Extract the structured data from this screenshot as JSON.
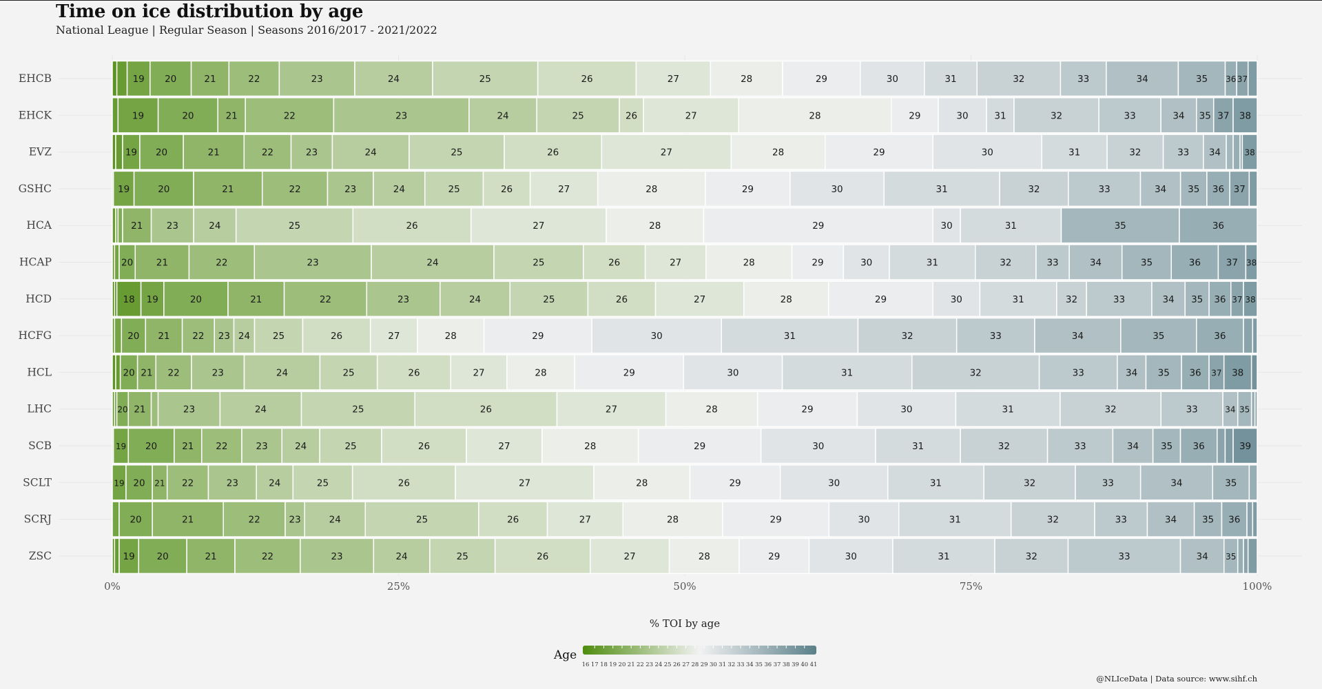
{
  "title": "Time on ice distribution by age",
  "subtitle": "National League | Regular Season | Seasons 2016/2017 - 2021/2022",
  "caption": "@NLIceData | Data source: www.sihf.ch",
  "chart_data": {
    "type": "bar",
    "orientation": "horizontal-stacked-100",
    "title": "Time on ice distribution by age",
    "xlabel": "% TOI by age",
    "xlim": [
      0,
      100
    ],
    "x_ticks": [
      "0%",
      "25%",
      "50%",
      "75%",
      "100%"
    ],
    "legend": {
      "title": "Age",
      "placement": "bottom",
      "min": 16,
      "max": 41,
      "ticks": [
        16,
        17,
        18,
        19,
        20,
        21,
        22,
        23,
        24,
        25,
        26,
        27,
        28,
        29,
        30,
        31,
        32,
        33,
        34,
        35,
        36,
        37,
        38,
        39,
        40,
        41
      ]
    },
    "colors": {
      "low": "#4e8c0e",
      "mid": "#f2f2f2",
      "high": "#5b808a"
    },
    "series": [
      {
        "team": "EHCB",
        "segments": [
          [
            17,
            0.4
          ],
          [
            18,
            0.9
          ],
          [
            19,
            2.0
          ],
          [
            20,
            3.6
          ],
          [
            21,
            3.3
          ],
          [
            22,
            4.4
          ],
          [
            23,
            6.6
          ],
          [
            24,
            6.8
          ],
          [
            25,
            9.2
          ],
          [
            26,
            8.6
          ],
          [
            27,
            6.5
          ],
          [
            28,
            6.3
          ],
          [
            29,
            6.8
          ],
          [
            30,
            5.6
          ],
          [
            31,
            4.6
          ],
          [
            32,
            7.3
          ],
          [
            33,
            4.0
          ],
          [
            34,
            6.3
          ],
          [
            35,
            4.1
          ],
          [
            36,
            1.0
          ],
          [
            37,
            1.0
          ],
          [
            38,
            0.8
          ]
        ]
      },
      {
        "team": "EHCK",
        "segments": [
          [
            18,
            0.5
          ],
          [
            19,
            3.5
          ],
          [
            20,
            5.2
          ],
          [
            21,
            2.4
          ],
          [
            22,
            7.7
          ],
          [
            23,
            11.8
          ],
          [
            24,
            5.9
          ],
          [
            25,
            7.2
          ],
          [
            26,
            2.1
          ],
          [
            27,
            8.3
          ],
          [
            28,
            13.3
          ],
          [
            29,
            4.1
          ],
          [
            30,
            4.2
          ],
          [
            31,
            2.4
          ],
          [
            32,
            7.4
          ],
          [
            33,
            5.4
          ],
          [
            34,
            3.1
          ],
          [
            35,
            1.5
          ],
          [
            37,
            1.7
          ],
          [
            38,
            2.1
          ]
        ]
      },
      {
        "team": "EVZ",
        "segments": [
          [
            17,
            0.3
          ],
          [
            18,
            0.6
          ],
          [
            19,
            1.5
          ],
          [
            20,
            3.8
          ],
          [
            21,
            5.3
          ],
          [
            22,
            4.1
          ],
          [
            23,
            3.6
          ],
          [
            24,
            6.7
          ],
          [
            25,
            8.3
          ],
          [
            26,
            8.5
          ],
          [
            27,
            11.3
          ],
          [
            28,
            8.2
          ],
          [
            29,
            9.4
          ],
          [
            30,
            9.5
          ],
          [
            31,
            5.7
          ],
          [
            32,
            4.9
          ],
          [
            33,
            3.5
          ],
          [
            34,
            2.0
          ],
          [
            35,
            0.6
          ],
          [
            36,
            0.6
          ],
          [
            37,
            0.2
          ],
          [
            38,
            1.3
          ]
        ]
      },
      {
        "team": "GSHC",
        "segments": [
          [
            18,
            0.1
          ],
          [
            19,
            1.8
          ],
          [
            20,
            5.2
          ],
          [
            21,
            6.0
          ],
          [
            22,
            5.7
          ],
          [
            23,
            4.0
          ],
          [
            24,
            4.5
          ],
          [
            25,
            5.1
          ],
          [
            26,
            4.1
          ],
          [
            27,
            5.9
          ],
          [
            28,
            9.4
          ],
          [
            29,
            7.4
          ],
          [
            30,
            8.2
          ],
          [
            31,
            10.1
          ],
          [
            32,
            6.0
          ],
          [
            33,
            6.3
          ],
          [
            34,
            3.5
          ],
          [
            35,
            2.3
          ],
          [
            36,
            2.0
          ],
          [
            37,
            1.7
          ],
          [
            38,
            0.7
          ]
        ]
      },
      {
        "team": "HCA",
        "segments": [
          [
            18,
            0.3
          ],
          [
            19,
            0.2
          ],
          [
            20,
            0.4
          ],
          [
            21,
            2.5
          ],
          [
            23,
            3.7
          ],
          [
            24,
            3.7
          ],
          [
            25,
            10.2
          ],
          [
            26,
            10.3
          ],
          [
            27,
            11.8
          ],
          [
            28,
            8.5
          ],
          [
            29,
            20.0
          ],
          [
            30,
            2.4
          ],
          [
            31,
            8.8
          ],
          [
            35,
            10.3
          ],
          [
            36,
            6.8
          ]
        ]
      },
      {
        "team": "HCAP",
        "segments": [
          [
            18,
            0.2
          ],
          [
            19,
            0.4
          ],
          [
            20,
            1.4
          ],
          [
            21,
            4.7
          ],
          [
            22,
            5.7
          ],
          [
            23,
            10.2
          ],
          [
            24,
            10.7
          ],
          [
            25,
            7.8
          ],
          [
            26,
            5.4
          ],
          [
            27,
            5.3
          ],
          [
            28,
            7.5
          ],
          [
            29,
            4.5
          ],
          [
            30,
            4.0
          ],
          [
            31,
            7.5
          ],
          [
            32,
            5.3
          ],
          [
            33,
            2.9
          ],
          [
            34,
            4.6
          ],
          [
            35,
            4.3
          ],
          [
            36,
            4.1
          ],
          [
            37,
            2.4
          ],
          [
            38,
            1.0
          ]
        ]
      },
      {
        "team": "HCD",
        "segments": [
          [
            16,
            0.2
          ],
          [
            17,
            0.2
          ],
          [
            18,
            2.1
          ],
          [
            19,
            2.0
          ],
          [
            20,
            5.6
          ],
          [
            21,
            4.9
          ],
          [
            22,
            7.2
          ],
          [
            23,
            6.4
          ],
          [
            24,
            6.1
          ],
          [
            25,
            6.8
          ],
          [
            26,
            5.9
          ],
          [
            27,
            7.7
          ],
          [
            28,
            7.4
          ],
          [
            29,
            9.1
          ],
          [
            30,
            4.1
          ],
          [
            31,
            6.7
          ],
          [
            32,
            2.6
          ],
          [
            33,
            5.7
          ],
          [
            34,
            2.9
          ],
          [
            35,
            2.1
          ],
          [
            36,
            1.9
          ],
          [
            37,
            1.1
          ],
          [
            38,
            1.2
          ]
        ]
      },
      {
        "team": "HCFG",
        "segments": [
          [
            18,
            0.2
          ],
          [
            19,
            0.6
          ],
          [
            20,
            2.1
          ],
          [
            21,
            3.2
          ],
          [
            22,
            2.8
          ],
          [
            23,
            1.7
          ],
          [
            24,
            1.8
          ],
          [
            25,
            4.2
          ],
          [
            26,
            5.9
          ],
          [
            27,
            4.1
          ],
          [
            28,
            5.8
          ],
          [
            29,
            9.4
          ],
          [
            30,
            11.3
          ],
          [
            31,
            11.9
          ],
          [
            32,
            8.6
          ],
          [
            33,
            6.8
          ],
          [
            34,
            7.5
          ],
          [
            35,
            6.6
          ],
          [
            36,
            4.1
          ],
          [
            37,
            0.8
          ],
          [
            38,
            0.4
          ]
        ]
      },
      {
        "team": "HCL",
        "segments": [
          [
            17,
            0.3
          ],
          [
            18,
            0.4
          ],
          [
            20,
            1.5
          ],
          [
            21,
            1.6
          ],
          [
            22,
            3.1
          ],
          [
            23,
            4.6
          ],
          [
            24,
            6.6
          ],
          [
            25,
            5.0
          ],
          [
            26,
            6.4
          ],
          [
            27,
            4.9
          ],
          [
            28,
            5.9
          ],
          [
            29,
            9.5
          ],
          [
            30,
            8.6
          ],
          [
            31,
            11.3
          ],
          [
            32,
            11.1
          ],
          [
            33,
            6.8
          ],
          [
            34,
            2.5
          ],
          [
            35,
            3.1
          ],
          [
            36,
            2.4
          ],
          [
            37,
            1.3
          ],
          [
            38,
            2.4
          ],
          [
            39,
            0.5
          ]
        ]
      },
      {
        "team": "LHC",
        "segments": [
          [
            18,
            0.2
          ],
          [
            19,
            0.2
          ],
          [
            20,
            1.0
          ],
          [
            21,
            2.0
          ],
          [
            22,
            0.6
          ],
          [
            23,
            5.4
          ],
          [
            24,
            7.1
          ],
          [
            25,
            9.9
          ],
          [
            26,
            12.4
          ],
          [
            27,
            9.5
          ],
          [
            28,
            8.0
          ],
          [
            29,
            8.7
          ],
          [
            30,
            8.6
          ],
          [
            31,
            9.1
          ],
          [
            32,
            8.8
          ],
          [
            33,
            5.4
          ],
          [
            34,
            1.3
          ],
          [
            35,
            1.2
          ],
          [
            36,
            0.3
          ],
          [
            37,
            0.2
          ]
        ]
      },
      {
        "team": "SCB",
        "segments": [
          [
            18,
            0.1
          ],
          [
            19,
            1.3
          ],
          [
            20,
            4.0
          ],
          [
            21,
            2.4
          ],
          [
            22,
            3.5
          ],
          [
            23,
            3.5
          ],
          [
            24,
            3.3
          ],
          [
            25,
            5.4
          ],
          [
            26,
            7.4
          ],
          [
            27,
            6.6
          ],
          [
            28,
            8.4
          ],
          [
            29,
            10.7
          ],
          [
            30,
            10.0
          ],
          [
            31,
            7.4
          ],
          [
            32,
            7.6
          ],
          [
            33,
            5.7
          ],
          [
            34,
            3.5
          ],
          [
            35,
            2.4
          ],
          [
            36,
            3.2
          ],
          [
            37,
            0.7
          ],
          [
            38,
            0.7
          ],
          [
            39,
            2.1
          ]
        ]
      },
      {
        "team": "SCLT",
        "segments": [
          [
            19,
            1.2
          ],
          [
            20,
            2.3
          ],
          [
            21,
            1.3
          ],
          [
            22,
            3.6
          ],
          [
            23,
            4.2
          ],
          [
            24,
            3.2
          ],
          [
            25,
            5.2
          ],
          [
            26,
            9.0
          ],
          [
            27,
            12.1
          ],
          [
            28,
            8.4
          ],
          [
            29,
            7.9
          ],
          [
            30,
            9.4
          ],
          [
            31,
            8.4
          ],
          [
            32,
            8.0
          ],
          [
            33,
            5.7
          ],
          [
            34,
            6.3
          ],
          [
            35,
            3.2
          ],
          [
            36,
            0.7
          ]
        ]
      },
      {
        "team": "SCRJ",
        "segments": [
          [
            19,
            0.6
          ],
          [
            20,
            2.9
          ],
          [
            21,
            6.2
          ],
          [
            22,
            5.4
          ],
          [
            23,
            1.7
          ],
          [
            24,
            5.3
          ],
          [
            25,
            9.9
          ],
          [
            26,
            6.0
          ],
          [
            27,
            6.6
          ],
          [
            28,
            8.7
          ],
          [
            29,
            9.3
          ],
          [
            30,
            6.1
          ],
          [
            31,
            9.8
          ],
          [
            32,
            7.3
          ],
          [
            33,
            4.6
          ],
          [
            34,
            4.1
          ],
          [
            35,
            2.4
          ],
          [
            36,
            2.2
          ],
          [
            37,
            0.5
          ],
          [
            38,
            0.4
          ]
        ]
      },
      {
        "team": "ZSC",
        "segments": [
          [
            17,
            0.2
          ],
          [
            18,
            0.4
          ],
          [
            19,
            1.7
          ],
          [
            20,
            4.2
          ],
          [
            21,
            4.2
          ],
          [
            22,
            5.7
          ],
          [
            23,
            6.4
          ],
          [
            24,
            4.9
          ],
          [
            25,
            5.7
          ],
          [
            26,
            8.3
          ],
          [
            27,
            6.9
          ],
          [
            28,
            6.1
          ],
          [
            29,
            6.1
          ],
          [
            30,
            7.3
          ],
          [
            31,
            8.9
          ],
          [
            32,
            6.4
          ],
          [
            33,
            9.8
          ],
          [
            34,
            3.8
          ],
          [
            35,
            1.2
          ],
          [
            36,
            0.5
          ],
          [
            37,
            0.4
          ],
          [
            38,
            0.8
          ]
        ]
      }
    ]
  }
}
